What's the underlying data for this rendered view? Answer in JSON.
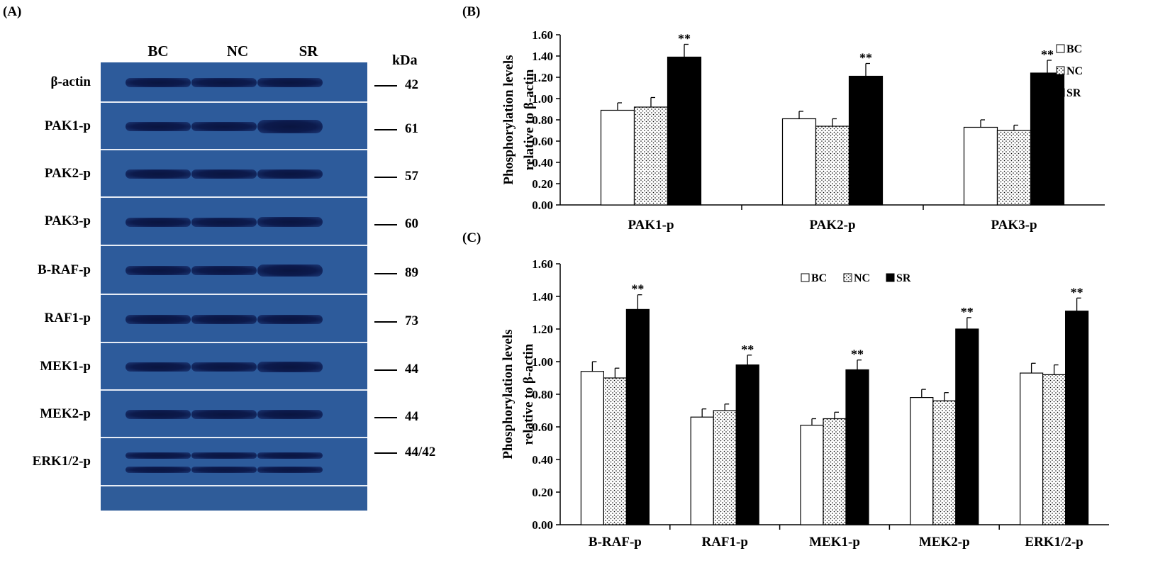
{
  "panels": {
    "a": "(A)",
    "b": "(B)",
    "c": "(C)"
  },
  "blot": {
    "lanes": [
      "BC",
      "NC",
      "SR"
    ],
    "kda_label": "kDa",
    "rows": [
      {
        "label": "β-actin",
        "kda": "42"
      },
      {
        "label": "PAK1-p",
        "kda": "61"
      },
      {
        "label": "PAK2-p",
        "kda": "57"
      },
      {
        "label": "PAK3-p",
        "kda": "60"
      },
      {
        "label": "B-RAF-p",
        "kda": "89"
      },
      {
        "label": "RAF1-p",
        "kda": "73"
      },
      {
        "label": "MEK1-p",
        "kda": "44"
      },
      {
        "label": "MEK2-p",
        "kda": "44"
      },
      {
        "label": "ERK1/2-p",
        "kda": "44/42"
      }
    ]
  },
  "colors": {
    "blot_background": "#2f5c99",
    "band": "#0c1a4c",
    "bar_sr": "#000000",
    "bar_bc": "#ffffff"
  },
  "chart_data": [
    {
      "type": "bar",
      "title": "",
      "ylabel_line1": "Phosphorylation levels",
      "ylabel_line2": "relative to  β-actin",
      "xlabel": "",
      "ylim": [
        0,
        1.6
      ],
      "yticks": [
        "0.00",
        "0.20",
        "0.40",
        "0.60",
        "0.80",
        "1.00",
        "1.20",
        "1.40",
        "1.60"
      ],
      "categories": [
        "PAK1-p",
        "PAK2-p",
        "PAK3-p"
      ],
      "legend_position": "right",
      "significance_mark": "**",
      "series": [
        {
          "name": "BC",
          "pattern": "white",
          "values": [
            0.89,
            0.81,
            0.73
          ],
          "errors": [
            0.07,
            0.07,
            0.07
          ],
          "sig": [
            false,
            false,
            false
          ]
        },
        {
          "name": "NC",
          "pattern": "dotted",
          "values": [
            0.92,
            0.74,
            0.7
          ],
          "errors": [
            0.09,
            0.07,
            0.05
          ],
          "sig": [
            false,
            false,
            false
          ]
        },
        {
          "name": "SR",
          "pattern": "black",
          "values": [
            1.39,
            1.21,
            1.24
          ],
          "errors": [
            0.12,
            0.12,
            0.12
          ],
          "sig": [
            true,
            true,
            true
          ]
        }
      ]
    },
    {
      "type": "bar",
      "title": "",
      "ylabel_line1": "Phosphorylation levels",
      "ylabel_line2": "relative to  β-actin",
      "xlabel": "",
      "ylim": [
        0,
        1.6
      ],
      "yticks": [
        "0.00",
        "0.20",
        "0.40",
        "0.60",
        "0.80",
        "1.00",
        "1.20",
        "1.40",
        "1.60"
      ],
      "categories": [
        "B-RAF-p",
        "RAF1-p",
        "MEK1-p",
        "MEK2-p",
        "ERK1/2-p"
      ],
      "legend_position": "top-center",
      "significance_mark": "**",
      "series": [
        {
          "name": "BC",
          "pattern": "white",
          "values": [
            0.94,
            0.66,
            0.61,
            0.78,
            0.93
          ],
          "errors": [
            0.06,
            0.05,
            0.04,
            0.05,
            0.06
          ],
          "sig": [
            false,
            false,
            false,
            false,
            false
          ]
        },
        {
          "name": "NC",
          "pattern": "dotted",
          "values": [
            0.9,
            0.7,
            0.65,
            0.76,
            0.92
          ],
          "errors": [
            0.06,
            0.04,
            0.04,
            0.05,
            0.06
          ],
          "sig": [
            false,
            false,
            false,
            false,
            false
          ]
        },
        {
          "name": "SR",
          "pattern": "black",
          "values": [
            1.32,
            0.98,
            0.95,
            1.2,
            1.31
          ],
          "errors": [
            0.09,
            0.06,
            0.06,
            0.07,
            0.08
          ],
          "sig": [
            true,
            true,
            true,
            true,
            true
          ]
        }
      ]
    }
  ]
}
